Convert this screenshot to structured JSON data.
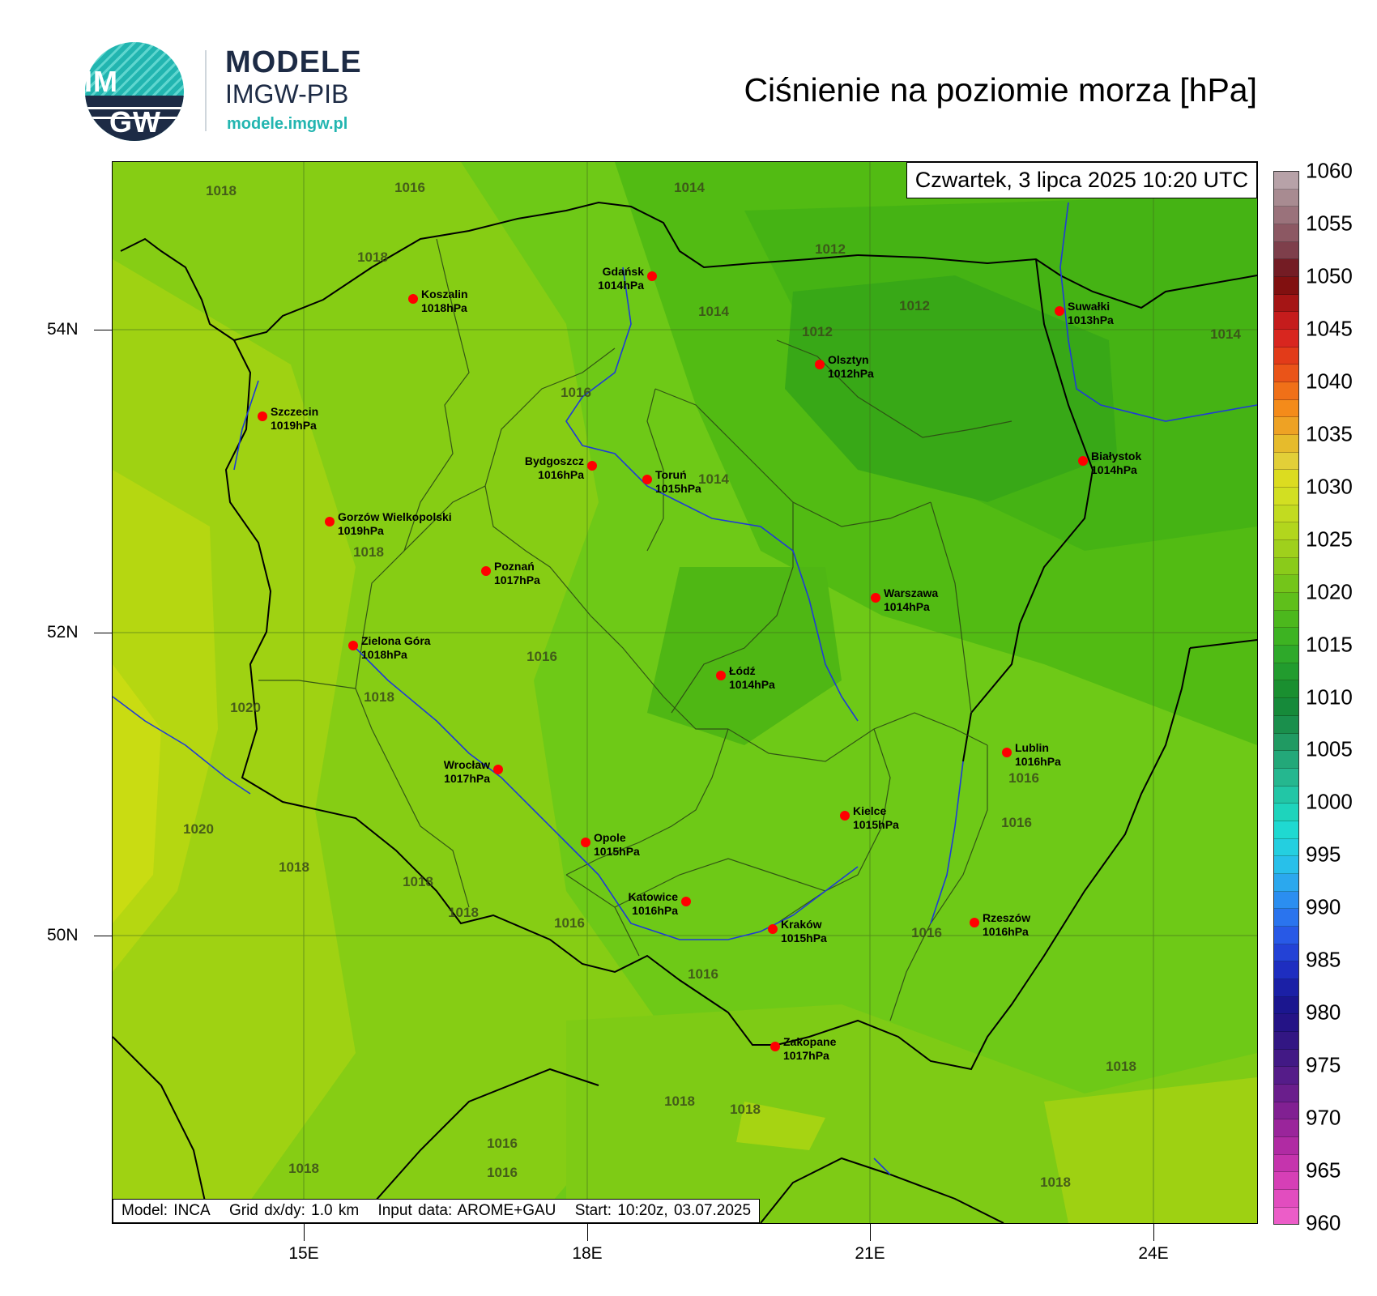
{
  "logo": {
    "circle_top": "IM",
    "circle_bottom": "GW",
    "name": "MODELE",
    "org": "IMGW-PIB",
    "url": "modele.imgw.pl"
  },
  "title": "Ciśnienie na poziomie morza [hPa]",
  "date_label": "Czwartek, 3 lipca 2025 10:20 UTC",
  "info": {
    "model": "Model: INCA",
    "grid": "Grid dx/dy: 1.0 km",
    "input": "Input data: AROME+GAU",
    "start": "Start: 10:20z, 03.07.2025"
  },
  "axes": {
    "lat_labels": [
      "54N",
      "52N",
      "50N"
    ],
    "lon_labels": [
      "15E",
      "18E",
      "21E",
      "24E"
    ]
  },
  "cities": [
    {
      "name": "Gdańsk",
      "value": "1014hPa"
    },
    {
      "name": "Koszalin",
      "value": "1018hPa"
    },
    {
      "name": "Suwałki",
      "value": "1013hPa"
    },
    {
      "name": "Olsztyn",
      "value": "1012hPa"
    },
    {
      "name": "Szczecin",
      "value": "1019hPa"
    },
    {
      "name": "Bydgoszcz",
      "value": "1016hPa"
    },
    {
      "name": "Toruń",
      "value": "1015hPa"
    },
    {
      "name": "Białystok",
      "value": "1014hPa"
    },
    {
      "name": "Gorzów Wielkopolski",
      "value": "1019hPa"
    },
    {
      "name": "Poznań",
      "value": "1017hPa"
    },
    {
      "name": "Warszawa",
      "value": "1014hPa"
    },
    {
      "name": "Zielona Góra",
      "value": "1018hPa"
    },
    {
      "name": "Łódź",
      "value": "1014hPa"
    },
    {
      "name": "Lublin",
      "value": "1016hPa"
    },
    {
      "name": "Wrocław",
      "value": "1017hPa"
    },
    {
      "name": "Kielce",
      "value": "1015hPa"
    },
    {
      "name": "Opole",
      "value": "1015hPa"
    },
    {
      "name": "Katowice",
      "value": "1016hPa"
    },
    {
      "name": "Kraków",
      "value": "1015hPa"
    },
    {
      "name": "Rzeszów",
      "value": "1016hPa"
    },
    {
      "name": "Zakopane",
      "value": "1017hPa"
    }
  ],
  "isobar_labels": [
    "1018",
    "1016",
    "1014",
    "1018",
    "1012",
    "1014",
    "1012",
    "1012",
    "1014",
    "1016",
    "1014",
    "1018",
    "1016",
    "1020",
    "1018",
    "1016",
    "1016",
    "1020",
    "1018",
    "1018",
    "1018",
    "1016",
    "1016",
    "1016",
    "1018",
    "1018",
    "1018",
    "1016",
    "1016",
    "1018",
    "1018"
  ],
  "colorbar": {
    "labels": [
      "1060",
      "1055",
      "1050",
      "1045",
      "1040",
      "1035",
      "1030",
      "1025",
      "1020",
      "1015",
      "1010",
      "1005",
      "1000",
      "995",
      "990",
      "985",
      "980",
      "975",
      "970",
      "965",
      "960"
    ],
    "colors": [
      "#b7a2a8",
      "#a88b91",
      "#9a727b",
      "#8c5863",
      "#7e3f4b",
      "#741c24",
      "#811010",
      "#a51515",
      "#c51c1c",
      "#d8261f",
      "#e23b19",
      "#ea5418",
      "#f07018",
      "#f48b1a",
      "#eea224",
      "#e6bb2c",
      "#e2cf38",
      "#dcdc20",
      "#d2df22",
      "#c2db20",
      "#b2d61d",
      "#9fd01c",
      "#8acb1a",
      "#74c51a",
      "#5fbf1b",
      "#4cb81d",
      "#3db322",
      "#2ea92a",
      "#229c2e",
      "#1a8f30",
      "#168a3a",
      "#1a8f4c",
      "#209a62",
      "#23a879",
      "#25b78f",
      "#22c6a6",
      "#1ed4bc",
      "#1fd9d1",
      "#24cfe0",
      "#28c0ea",
      "#2ba8ee",
      "#2b8ef0",
      "#2a74ee",
      "#2859e6",
      "#2342d6",
      "#1e2ec0",
      "#1b20a6",
      "#1b168f",
      "#241386",
      "#321683",
      "#421985",
      "#551c89",
      "#6a1e8c",
      "#812092",
      "#9a259b",
      "#b02ba3",
      "#c534ad",
      "#d63fb6",
      "#e24dbf",
      "#ec5dc8"
    ]
  }
}
